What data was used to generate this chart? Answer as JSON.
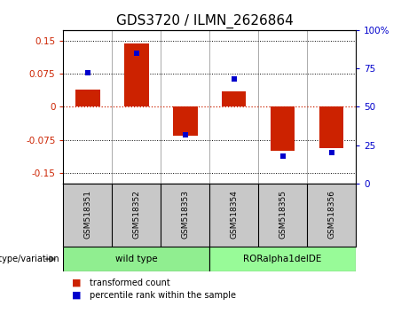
{
  "title": "GDS3720 / ILMN_2626864",
  "samples": [
    "GSM518351",
    "GSM518352",
    "GSM518353",
    "GSM518354",
    "GSM518355",
    "GSM518356"
  ],
  "red_values": [
    0.04,
    0.143,
    -0.065,
    0.035,
    -0.1,
    -0.095
  ],
  "blue_values": [
    72,
    85,
    32,
    68,
    18,
    20
  ],
  "groups": [
    {
      "label": "wild type",
      "start": 0,
      "end": 3,
      "color": "#90EE90"
    },
    {
      "label": "RORalpha1delDE",
      "start": 3,
      "end": 6,
      "color": "#98FB98"
    }
  ],
  "ylim_left": [
    -0.175,
    0.175
  ],
  "ylim_right": [
    0,
    100
  ],
  "yticks_left": [
    -0.15,
    -0.075,
    0,
    0.075,
    0.15
  ],
  "yticks_right": [
    0,
    25,
    50,
    75,
    100
  ],
  "ytick_labels_left": [
    "-0.15",
    "-0.075",
    "0",
    "0.075",
    "0.15"
  ],
  "ytick_labels_right": [
    "0",
    "25",
    "50",
    "75",
    "100%"
  ],
  "red_color": "#CC2200",
  "blue_color": "#0000CC",
  "bar_width": 0.5,
  "blue_marker_size": 5,
  "legend_red": "transformed count",
  "legend_blue": "percentile rank within the sample",
  "genotype_label": "genotype/variation",
  "bg_color_samples": "#C8C8C8",
  "title_fontsize": 11,
  "tick_fontsize": 7.5,
  "sample_fontsize": 6.5
}
